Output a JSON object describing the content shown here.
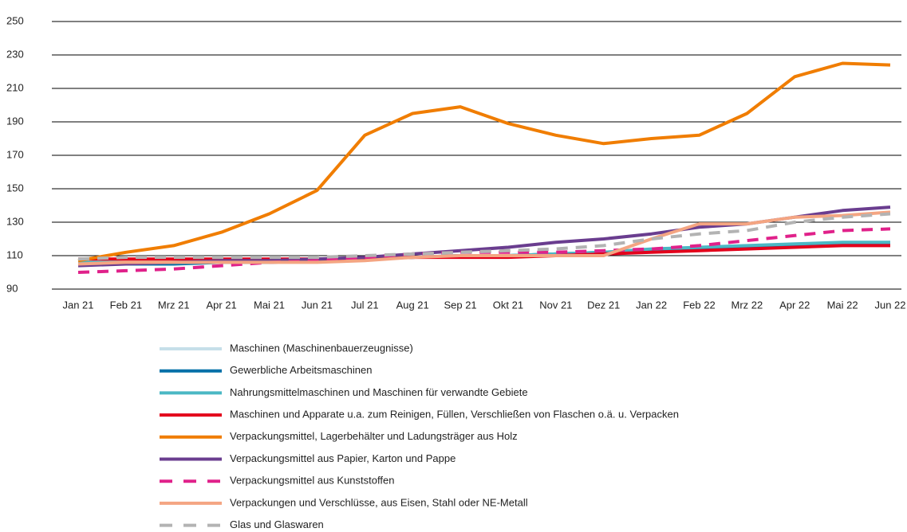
{
  "chart_data": {
    "type": "line",
    "categories": [
      "Jan 21",
      "Feb 21",
      "Mrz 21",
      "Apr 21",
      "Mai 21",
      "Jun 21",
      "Jul 21",
      "Aug 21",
      "Sep 21",
      "Okt 21",
      "Nov 21",
      "Dez 21",
      "Jan 22",
      "Feb 22",
      "Mrz 22",
      "Apr 22",
      "Mai 22",
      "Jun 22"
    ],
    "ylim": [
      90,
      250
    ],
    "yticks": [
      90,
      110,
      130,
      150,
      170,
      190,
      210,
      230,
      250
    ],
    "grid": true,
    "series": [
      {
        "name": "Maschinen (Maschinenbauerzeugnisse)",
        "color": "#c6dfe9",
        "values": [
          105,
          105,
          106,
          106,
          106,
          107,
          108,
          109,
          110,
          110,
          111,
          112,
          113,
          114,
          115,
          116,
          117,
          118
        ]
      },
      {
        "name": "Gewerbliche Arbeitsmaschinen",
        "color": "#0070a8",
        "values": [
          105,
          105,
          105,
          106,
          106,
          107,
          108,
          109,
          110,
          110,
          111,
          112,
          113,
          114,
          115,
          116,
          117,
          117
        ]
      },
      {
        "name": "Nahrungsmittelmaschinen und Maschinen für verwandte Gebiete",
        "color": "#4bb8c4",
        "values": [
          106,
          106,
          106,
          106,
          106,
          107,
          108,
          109,
          110,
          110,
          111,
          112,
          114,
          115,
          116,
          117,
          118,
          118
        ]
      },
      {
        "name": "Maschinen und Apparate u.a. zum Reinigen, Füllen, Verschließen von Flaschen o.ä. u. Verpacken",
        "color": "#e3001b",
        "values": [
          108,
          108,
          108,
          108,
          108,
          108,
          108,
          109,
          109,
          109,
          110,
          111,
          112,
          113,
          114,
          115,
          116,
          116
        ]
      },
      {
        "name": "Verpackungsmittel, Lagerbehälter und Ladungsträger aus Holz",
        "color": "#f07d00",
        "values": [
          107,
          112,
          116,
          124,
          135,
          149,
          182,
          195,
          199,
          189,
          182,
          177,
          180,
          182,
          195,
          217,
          225,
          224
        ]
      },
      {
        "name": "Verpackungsmittel aus Papier, Karton und Pappe",
        "color": "#6a3d8f",
        "values": [
          104,
          105,
          106,
          107,
          107,
          108,
          109,
          111,
          113,
          115,
          118,
          120,
          123,
          127,
          129,
          133,
          137,
          139
        ]
      },
      {
        "name": "Verpackungsmittel aus Kunststoffen",
        "color": "#e0218a",
        "dashed": true,
        "values": [
          100,
          101,
          102,
          104,
          106,
          107,
          109,
          111,
          112,
          112,
          112,
          113,
          114,
          116,
          119,
          122,
          125,
          126
        ]
      },
      {
        "name": "Verpackungen und Verschlüsse, aus Eisen, Stahl oder NE-Metall",
        "color": "#f4a582",
        "values": [
          105,
          106,
          106,
          106,
          106,
          106,
          107,
          109,
          110,
          110,
          110,
          110,
          120,
          129,
          129,
          133,
          134,
          136
        ]
      },
      {
        "name": "Glas und Glaswaren",
        "color": "#b3b3b3",
        "dashed": true,
        "values": [
          108,
          109,
          109,
          109,
          109,
          109,
          110,
          111,
          112,
          113,
          114,
          116,
          120,
          123,
          125,
          130,
          133,
          135
        ]
      }
    ]
  }
}
